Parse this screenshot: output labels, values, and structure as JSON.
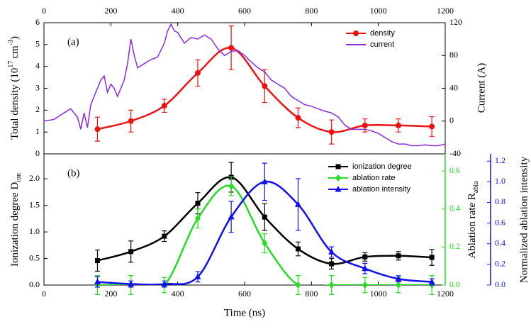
{
  "chart_data": [
    {
      "type": "line",
      "annotation": "(a)",
      "ylabel": [
        "Total density (10",
        "17",
        "cm",
        "-3",
        ")"
      ],
      "y2label": "Current (A)",
      "xlim": [
        0,
        1200
      ],
      "xticks": [
        0,
        200,
        400,
        600,
        800,
        1000,
        1200
      ],
      "ylim": [
        0,
        6
      ],
      "yticks": [
        0,
        1,
        2,
        3,
        4,
        5,
        6
      ],
      "y2lim": [
        -40,
        120
      ],
      "y2ticks": [
        -40,
        0,
        40,
        80,
        120
      ],
      "series": [
        {
          "name": "density",
          "color": "#ee1111",
          "marker": "circle",
          "axis": "y",
          "smooth": true,
          "x": [
            160,
            260,
            360,
            460,
            560,
            660,
            760,
            860,
            960,
            1060,
            1160
          ],
          "values": [
            1.13,
            1.5,
            2.2,
            3.7,
            4.85,
            3.1,
            1.65,
            1.0,
            1.3,
            1.3,
            1.25
          ],
          "errors": [
            0.55,
            0.5,
            0.3,
            0.6,
            1.0,
            0.75,
            0.45,
            0.55,
            0.3,
            0.3,
            0.45
          ]
        },
        {
          "name": "current",
          "color": "#8a2be2",
          "marker": null,
          "axis": "y2",
          "smooth": false,
          "x": [
            0,
            30,
            60,
            80,
            100,
            110,
            120,
            130,
            140,
            150,
            160,
            170,
            180,
            190,
            200,
            210,
            220,
            240,
            250,
            260,
            270,
            280,
            300,
            320,
            340,
            360,
            370,
            380,
            390,
            400,
            420,
            440,
            460,
            480,
            500,
            520,
            540,
            560,
            580,
            600,
            620,
            640,
            660,
            680,
            700,
            720,
            740,
            760,
            780,
            800,
            820,
            840,
            860,
            880,
            900,
            920,
            940,
            960,
            980,
            1000,
            1020,
            1040,
            1060,
            1080,
            1100,
            1120,
            1140,
            1160,
            1180,
            1200
          ],
          "values": [
            0,
            2,
            10,
            15,
            5,
            -10,
            10,
            -8,
            20,
            30,
            40,
            50,
            55,
            35,
            45,
            40,
            30,
            50,
            70,
            100,
            80,
            65,
            70,
            75,
            78,
            95,
            110,
            118,
            110,
            108,
            95,
            102,
            100,
            105,
            100,
            88,
            80,
            85,
            86,
            80,
            72,
            65,
            60,
            50,
            45,
            40,
            30,
            25,
            20,
            18,
            15,
            12,
            10,
            5,
            -5,
            -10,
            -10,
            -10,
            -12,
            -15,
            -20,
            -25,
            -28,
            -28,
            -30,
            -30,
            -29,
            -30,
            -30,
            -28
          ]
        }
      ]
    },
    {
      "type": "line",
      "annotation": "(b)",
      "ylabel": [
        "Ionization degree D",
        "ion"
      ],
      "y2label": [
        "Ablation rate R",
        "abla"
      ],
      "y3label": "Normalized ablation intensity",
      "xlabel": "Time (ns)",
      "xlim": [
        0,
        1200
      ],
      "xticks": [
        0,
        200,
        400,
        600,
        800,
        1000,
        1200
      ],
      "ylim": [
        0,
        2.47
      ],
      "yticks": [
        {
          "value": 0,
          "label": "0.0"
        },
        0.5,
        {
          "value": 1,
          "label": "1.0"
        },
        1.5,
        {
          "value": 2,
          "label": "2.0"
        }
      ],
      "y2lim": [
        0,
        0.69
      ],
      "y2ticks": [
        {
          "value": 0,
          "label": "0.0"
        },
        0.2,
        0.4,
        0.6
      ],
      "y2color": "#22dd22",
      "y3lim": [
        0,
        1.27
      ],
      "y3ticks": [
        {
          "value": 0,
          "label": "0.0"
        },
        0.2,
        0.4,
        0.6,
        0.8,
        {
          "value": 1,
          "label": "1.0"
        },
        1.2
      ],
      "y3color": "#1010ee",
      "series": [
        {
          "name": "ionization degree",
          "color": "#000000",
          "marker": "square",
          "axis": "y",
          "smooth": true,
          "x": [
            160,
            260,
            360,
            460,
            560,
            660,
            760,
            860,
            960,
            1060,
            1160
          ],
          "values": [
            0.46,
            0.63,
            0.92,
            1.54,
            2.03,
            1.28,
            0.68,
            0.4,
            0.53,
            0.55,
            0.52
          ],
          "errors": [
            0.2,
            0.2,
            0.1,
            0.2,
            0.28,
            0.25,
            0.13,
            0.1,
            0.08,
            0.08,
            0.15
          ]
        },
        {
          "name": "ablation rate",
          "color": "#22dd22",
          "marker": "diamond",
          "axis": "y2",
          "smooth": true,
          "x": [
            160,
            260,
            360,
            460,
            560,
            660,
            760,
            860,
            960,
            1060,
            1160
          ],
          "values": [
            0,
            0,
            0,
            0.35,
            0.52,
            0.22,
            0,
            0,
            0,
            0,
            0
          ],
          "errors": [
            0.05,
            0.05,
            0.04,
            0.05,
            0.05,
            0.05,
            0.05,
            0.05,
            0.04,
            0.04,
            0.05
          ]
        },
        {
          "name": "ablation intensity",
          "color": "#1010ee",
          "marker": "triangle",
          "axis": "y3",
          "smooth": true,
          "x": [
            160,
            260,
            360,
            460,
            560,
            660,
            760,
            860,
            960,
            1060,
            1160
          ],
          "values": [
            0.03,
            0.01,
            0.01,
            0.08,
            0.66,
            1.0,
            0.78,
            0.32,
            0.16,
            0.06,
            0.03
          ],
          "errors": [
            0.05,
            0.03,
            0.03,
            0.05,
            0.15,
            0.18,
            0.25,
            0.05,
            0.05,
            0.03,
            0.03
          ]
        }
      ]
    }
  ]
}
